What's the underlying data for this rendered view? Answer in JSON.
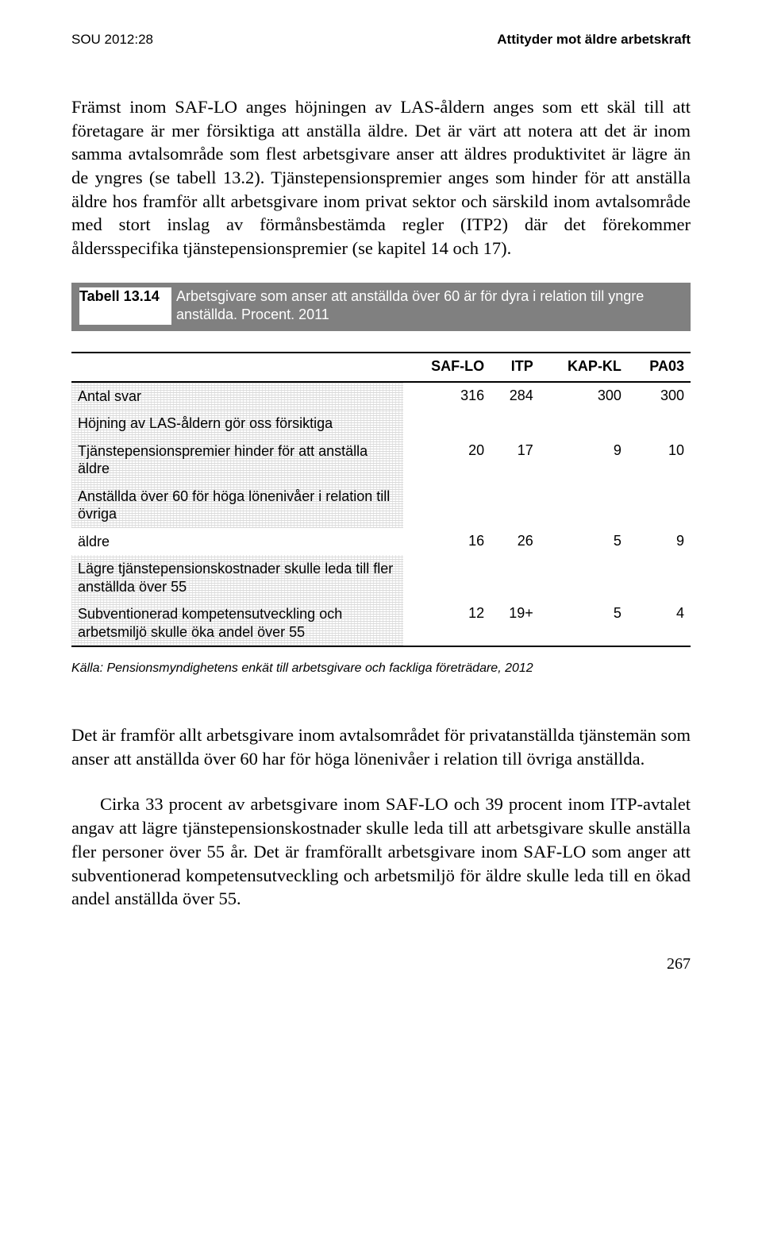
{
  "header": {
    "left": "SOU 2012:28",
    "right": "Attityder mot äldre arbetskraft"
  },
  "paragraphs": {
    "p1": "Främst inom SAF-LO anges höjningen av LAS-åldern anges som ett skäl till att företagare är mer försiktiga att anställa äldre. Det är värt att notera att det är inom samma avtalsområde som flest arbetsgivare anser att äldres produktivitet är lägre än de yngres (se tabell 13.2). Tjänstepensionspremier anges som hinder för att anställa äldre hos framför allt arbetsgivare inom privat sektor och särskild inom avtalsområde med stort inslag av förmånsbestämda regler (ITP2) där det förekommer åldersspecifika tjänstepensionspremier (se kapitel 14 och 17)."
  },
  "table": {
    "label_num": "Tabell 13.14",
    "label_txt": "Arbetsgivare som anser att anställda över 60 är för dyra i relation till yngre anställda. Procent. 2011",
    "columns": [
      "SAF-LO",
      "ITP",
      "KAP-KL",
      "PA03"
    ],
    "rows": [
      {
        "label": "Antal svar",
        "values": [
          "316",
          "284",
          "300",
          "300"
        ]
      },
      {
        "label": "Höjning av LAS-åldern gör oss försiktiga",
        "values": [
          "",
          "",
          "",
          ""
        ]
      },
      {
        "label": "Tjänstepensionspremier hinder för att anställa äldre",
        "values": [
          "20",
          "17",
          "9",
          "10"
        ]
      },
      {
        "label": "Anställda över 60 för höga lönenivåer i relation till övriga",
        "values": [
          "",
          "",
          "",
          ""
        ]
      },
      {
        "label": "äldre",
        "values": [
          "16",
          "26",
          "5",
          "9"
        ]
      },
      {
        "label": "Lägre tjänstepensionskostnader skulle leda till fler anställda över 55",
        "values": [
          "",
          "",
          "",
          ""
        ]
      },
      {
        "label": "Subventionerad kompetensutveckling och arbetsmiljö skulle öka andel över 55",
        "values": [
          "12",
          "19+",
          "5",
          "4"
        ]
      }
    ],
    "source_label": "Källa:",
    "source_text": "Pensionsmyndighetens enkät till arbetsgivare och fackliga företrädare, 2012"
  },
  "paragraphs2": {
    "p2": "Det är framför allt arbetsgivare inom avtalsområdet för privatanställda tjänstemän som anser att anställda över 60 har för höga lönenivåer i relation till övriga anställda.",
    "p3": "Cirka 33 procent av arbetsgivare inom SAF-LO och 39 procent inom ITP-avtalet angav att lägre tjänstepensionskostnader skulle leda till att arbetsgivare skulle anställa fler personer över 55 år. Det är framförallt arbetsgivare inom SAF-LO som anger att subventionerad kompetensutveckling och arbetsmiljö för äldre skulle leda till en ökad andel anställda över 55."
  },
  "page_number": "267"
}
